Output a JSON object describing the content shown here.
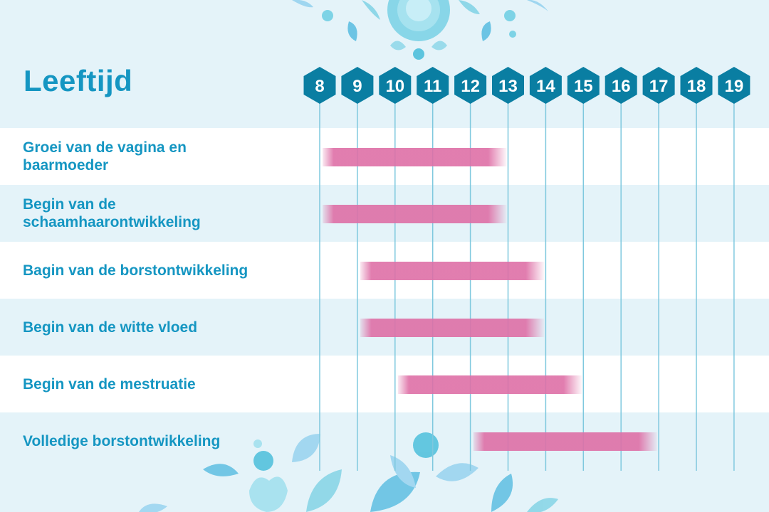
{
  "header": {
    "title": "Leeftijd"
  },
  "colors": {
    "background": "#e4f3f9",
    "band_white": "#ffffff",
    "band_light": "#e4f3f9",
    "accent_teal": "#1596c2",
    "hex_fill": "#0a7ea2",
    "gridline": "#7ec8de",
    "bar_pink": "#de6fa6"
  },
  "chart_data": {
    "type": "bar",
    "orientation": "horizontal-range",
    "title": "Leeftijd",
    "x_ticks": [
      8,
      9,
      10,
      11,
      12,
      13,
      14,
      15,
      16,
      17,
      18,
      19
    ],
    "xlim": [
      8,
      19
    ],
    "grid": true,
    "categories": [
      "Groei van de vagina en baarmoeder",
      "Begin van de schaamhaarontwikkeling",
      "Bagin van de borstontwikkeling",
      "Begin van de witte vloed",
      "Begin van de mestruatie",
      "Volledige borstontwikkeling"
    ],
    "ranges": [
      {
        "start": 8,
        "end": 13
      },
      {
        "start": 8,
        "end": 13
      },
      {
        "start": 9,
        "end": 14
      },
      {
        "start": 9,
        "end": 14
      },
      {
        "start": 10,
        "end": 15
      },
      {
        "start": 12,
        "end": 17
      }
    ]
  }
}
